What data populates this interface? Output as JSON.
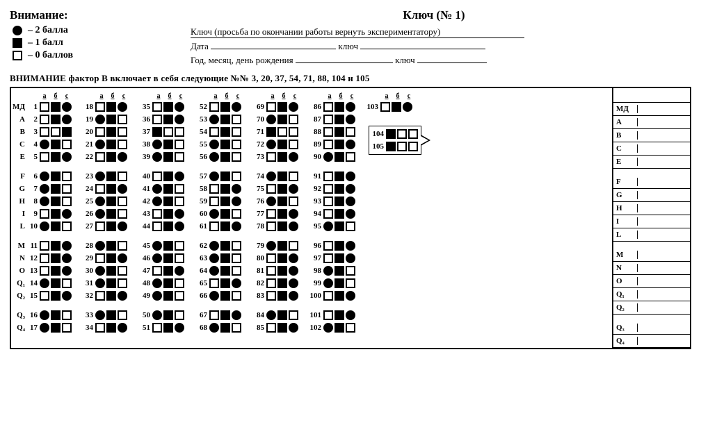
{
  "header": {
    "attention": "Внимание:",
    "key_title": "Ключ  (№ 1)",
    "return_note": "Ключ (просьба  по окончании работы  вернуть экспериментатору)",
    "date_label": "Дата",
    "key_word": "ключ",
    "dob_label": "Год, месяц, день рождения"
  },
  "legend": {
    "two": "– 2 балла",
    "one": "– 1 балл",
    "zero": "– 0 баллов"
  },
  "warning": "ВНИМАНИЕ  фактор В включает в себя следующие №№  3, 20, 37, 54, 71, 88, 104 и 105",
  "abc": [
    "а",
    "б",
    "с"
  ],
  "columns": [
    {
      "show_label": true,
      "label_width": 18,
      "items": [
        {
          "lab": "МД",
          "n": 1,
          "a": "se",
          "b": "sf",
          "c": "cf"
        },
        {
          "lab": "A",
          "n": 2,
          "a": "se",
          "b": "sf",
          "c": "cf"
        },
        {
          "lab": "B",
          "n": 3,
          "a": "se",
          "b": "se",
          "c": "sf"
        },
        {
          "lab": "C",
          "n": 4,
          "a": "cf",
          "b": "sf",
          "c": "se"
        },
        {
          "lab": "E",
          "n": 5,
          "a": "se",
          "b": "sf",
          "c": "cf"
        },
        {
          "gap": true
        },
        {
          "lab": "F",
          "n": 6,
          "a": "cf",
          "b": "sf",
          "c": "se"
        },
        {
          "lab": "G",
          "n": 7,
          "a": "cf",
          "b": "sf",
          "c": "se"
        },
        {
          "lab": "H",
          "n": 8,
          "a": "cf",
          "b": "sf",
          "c": "se"
        },
        {
          "lab": "I",
          "n": 9,
          "a": "se",
          "b": "sf",
          "c": "cf"
        },
        {
          "lab": "L",
          "n": 10,
          "a": "cf",
          "b": "sf",
          "c": "se"
        },
        {
          "gap": true
        },
        {
          "lab": "M",
          "n": 11,
          "a": "se",
          "b": "sf",
          "c": "cf"
        },
        {
          "lab": "N",
          "n": 12,
          "a": "se",
          "b": "sf",
          "c": "cf"
        },
        {
          "lab": "O",
          "n": 13,
          "a": "se",
          "b": "sf",
          "c": "cf"
        },
        {
          "lab": "Q₁",
          "n": 14,
          "a": "cf",
          "b": "sf",
          "c": "se"
        },
        {
          "lab": "Q₂",
          "n": 15,
          "a": "se",
          "b": "sf",
          "c": "cf"
        },
        {
          "gap": true
        },
        {
          "lab": "Q₃",
          "n": 16,
          "a": "cf",
          "b": "sf",
          "c": "se"
        },
        {
          "lab": "Q₄",
          "n": 17,
          "a": "cf",
          "b": "sf",
          "c": "se"
        }
      ]
    },
    {
      "items": [
        {
          "n": 18,
          "a": "se",
          "b": "sf",
          "c": "cf"
        },
        {
          "n": 19,
          "a": "cf",
          "b": "sf",
          "c": "se"
        },
        {
          "n": 20,
          "a": "se",
          "b": "sf",
          "c": "se"
        },
        {
          "n": 21,
          "a": "cf",
          "b": "sf",
          "c": "se"
        },
        {
          "n": 22,
          "a": "se",
          "b": "sf",
          "c": "cf"
        },
        {
          "gap": true
        },
        {
          "n": 23,
          "a": "cf",
          "b": "sf",
          "c": "se"
        },
        {
          "n": 24,
          "a": "se",
          "b": "sf",
          "c": "cf"
        },
        {
          "n": 25,
          "a": "cf",
          "b": "sf",
          "c": "se"
        },
        {
          "n": 26,
          "a": "cf",
          "b": "sf",
          "c": "se"
        },
        {
          "n": 27,
          "a": "se",
          "b": "sf",
          "c": "cf"
        },
        {
          "gap": true
        },
        {
          "n": 28,
          "a": "cf",
          "b": "sf",
          "c": "se"
        },
        {
          "n": 29,
          "a": "se",
          "b": "sf",
          "c": "cf"
        },
        {
          "n": 30,
          "a": "cf",
          "b": "sf",
          "c": "se"
        },
        {
          "n": 31,
          "a": "cf",
          "b": "sf",
          "c": "se"
        },
        {
          "n": 32,
          "a": "se",
          "b": "sf",
          "c": "cf"
        },
        {
          "gap": true
        },
        {
          "n": 33,
          "a": "cf",
          "b": "sf",
          "c": "se"
        },
        {
          "n": 34,
          "a": "se",
          "b": "sf",
          "c": "cf"
        }
      ]
    },
    {
      "items": [
        {
          "n": 35,
          "a": "se",
          "b": "sf",
          "c": "cf"
        },
        {
          "n": 36,
          "a": "se",
          "b": "sf",
          "c": "cf"
        },
        {
          "n": 37,
          "a": "sf",
          "b": "se",
          "c": "se"
        },
        {
          "n": 38,
          "a": "cf",
          "b": "sf",
          "c": "se"
        },
        {
          "n": 39,
          "a": "cf",
          "b": "sf",
          "c": "se"
        },
        {
          "gap": true
        },
        {
          "n": 40,
          "a": "se",
          "b": "sf",
          "c": "cf"
        },
        {
          "n": 41,
          "a": "cf",
          "b": "sf",
          "c": "se"
        },
        {
          "n": 42,
          "a": "cf",
          "b": "sf",
          "c": "se"
        },
        {
          "n": 43,
          "a": "se",
          "b": "sf",
          "c": "cf"
        },
        {
          "n": 44,
          "a": "se",
          "b": "sf",
          "c": "cf"
        },
        {
          "gap": true
        },
        {
          "n": 45,
          "a": "cf",
          "b": "sf",
          "c": "se"
        },
        {
          "n": 46,
          "a": "cf",
          "b": "sf",
          "c": "se"
        },
        {
          "n": 47,
          "a": "se",
          "b": "sf",
          "c": "cf"
        },
        {
          "n": 48,
          "a": "cf",
          "b": "sf",
          "c": "se"
        },
        {
          "n": 49,
          "a": "cf",
          "b": "sf",
          "c": "se"
        },
        {
          "gap": true
        },
        {
          "n": 50,
          "a": "cf",
          "b": "sf",
          "c": "se"
        },
        {
          "n": 51,
          "a": "se",
          "b": "sf",
          "c": "cf"
        }
      ]
    },
    {
      "items": [
        {
          "n": 52,
          "a": "se",
          "b": "sf",
          "c": "cf"
        },
        {
          "n": 53,
          "a": "cf",
          "b": "sf",
          "c": "se"
        },
        {
          "n": 54,
          "a": "se",
          "b": "sf",
          "c": "se"
        },
        {
          "n": 55,
          "a": "cf",
          "b": "sf",
          "c": "se"
        },
        {
          "n": 56,
          "a": "cf",
          "b": "sf",
          "c": "se"
        },
        {
          "gap": true
        },
        {
          "n": 57,
          "a": "cf",
          "b": "sf",
          "c": "se"
        },
        {
          "n": 58,
          "a": "se",
          "b": "sf",
          "c": "cf"
        },
        {
          "n": 59,
          "a": "se",
          "b": "sf",
          "c": "cf"
        },
        {
          "n": 60,
          "a": "cf",
          "b": "sf",
          "c": "se"
        },
        {
          "n": 61,
          "a": "se",
          "b": "sf",
          "c": "cf"
        },
        {
          "gap": true
        },
        {
          "n": 62,
          "a": "cf",
          "b": "sf",
          "c": "se"
        },
        {
          "n": 63,
          "a": "cf",
          "b": "sf",
          "c": "se"
        },
        {
          "n": 64,
          "a": "cf",
          "b": "sf",
          "c": "se"
        },
        {
          "n": 65,
          "a": "se",
          "b": "sf",
          "c": "cf"
        },
        {
          "n": 66,
          "a": "cf",
          "b": "sf",
          "c": "se"
        },
        {
          "gap": true
        },
        {
          "n": 67,
          "a": "se",
          "b": "sf",
          "c": "cf"
        },
        {
          "n": 68,
          "a": "cf",
          "b": "sf",
          "c": "se"
        }
      ]
    },
    {
      "items": [
        {
          "n": 69,
          "a": "se",
          "b": "sf",
          "c": "cf"
        },
        {
          "n": 70,
          "a": "cf",
          "b": "sf",
          "c": "se"
        },
        {
          "n": 71,
          "a": "sf",
          "b": "se",
          "c": "se"
        },
        {
          "n": 72,
          "a": "cf",
          "b": "sf",
          "c": "se"
        },
        {
          "n": 73,
          "a": "se",
          "b": "sf",
          "c": "cf"
        },
        {
          "gap": true
        },
        {
          "n": 74,
          "a": "cf",
          "b": "sf",
          "c": "se"
        },
        {
          "n": 75,
          "a": "se",
          "b": "sf",
          "c": "cf"
        },
        {
          "n": 76,
          "a": "cf",
          "b": "sf",
          "c": "se"
        },
        {
          "n": 77,
          "a": "se",
          "b": "sf",
          "c": "cf"
        },
        {
          "n": 78,
          "a": "se",
          "b": "sf",
          "c": "cf"
        },
        {
          "gap": true
        },
        {
          "n": 79,
          "a": "cf",
          "b": "sf",
          "c": "se"
        },
        {
          "n": 80,
          "a": "se",
          "b": "sf",
          "c": "cf"
        },
        {
          "n": 81,
          "a": "se",
          "b": "sf",
          "c": "cf"
        },
        {
          "n": 82,
          "a": "se",
          "b": "sf",
          "c": "cf"
        },
        {
          "n": 83,
          "a": "se",
          "b": "sf",
          "c": "cf"
        },
        {
          "gap": true
        },
        {
          "n": 84,
          "a": "cf",
          "b": "sf",
          "c": "se"
        },
        {
          "n": 85,
          "a": "se",
          "b": "sf",
          "c": "cf"
        }
      ]
    },
    {
      "items": [
        {
          "n": 86,
          "a": "se",
          "b": "sf",
          "c": "cf"
        },
        {
          "n": 87,
          "a": "se",
          "b": "sf",
          "c": "cf"
        },
        {
          "n": 88,
          "a": "se",
          "b": "sf",
          "c": "se"
        },
        {
          "n": 89,
          "a": "se",
          "b": "sf",
          "c": "cf"
        },
        {
          "n": 90,
          "a": "cf",
          "b": "sf",
          "c": "se"
        },
        {
          "gap": true
        },
        {
          "n": 91,
          "a": "se",
          "b": "sf",
          "c": "cf"
        },
        {
          "n": 92,
          "a": "se",
          "b": "sf",
          "c": "cf"
        },
        {
          "n": 93,
          "a": "se",
          "b": "sf",
          "c": "cf"
        },
        {
          "n": 94,
          "a": "se",
          "b": "sf",
          "c": "cf"
        },
        {
          "n": 95,
          "a": "cf",
          "b": "sf",
          "c": "se"
        },
        {
          "gap": true
        },
        {
          "n": 96,
          "a": "se",
          "b": "sf",
          "c": "cf"
        },
        {
          "n": 97,
          "a": "se",
          "b": "sf",
          "c": "cf"
        },
        {
          "n": 98,
          "a": "cf",
          "b": "sf",
          "c": "se"
        },
        {
          "n": 99,
          "a": "cf",
          "b": "sf",
          "c": "se"
        },
        {
          "n": 100,
          "a": "se",
          "b": "sf",
          "c": "cf"
        },
        {
          "gap": true
        },
        {
          "n": 101,
          "a": "se",
          "b": "sf",
          "c": "cf"
        },
        {
          "n": 102,
          "a": "cf",
          "b": "sf",
          "c": "se"
        }
      ]
    },
    {
      "special": true,
      "items": [
        {
          "n": 103,
          "a": "se",
          "b": "sf",
          "c": "cf"
        },
        {
          "blank": true
        },
        {
          "callout": true,
          "rows": [
            {
              "n": 104,
              "a": "sf",
              "b": "se",
              "c": "se"
            },
            {
              "n": 105,
              "a": "sf",
              "b": "se",
              "c": "se"
            }
          ]
        }
      ]
    }
  ],
  "score_labels": [
    "МД",
    "A",
    "B",
    "C",
    "E",
    "",
    "F",
    "G",
    "H",
    "I",
    "L",
    "",
    "M",
    "N",
    "O",
    "Q₁",
    "Q₂",
    "",
    "Q₃",
    "Q₄"
  ],
  "colors": {
    "black": "#000000",
    "white": "#ffffff"
  }
}
